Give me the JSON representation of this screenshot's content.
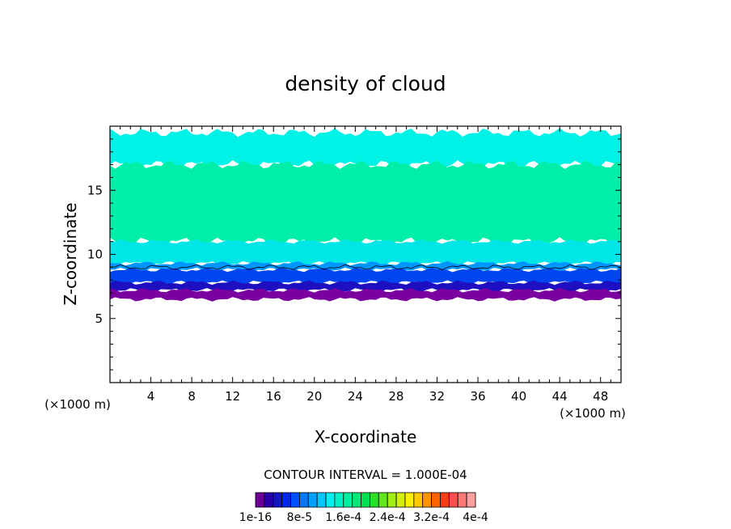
{
  "chart_data": {
    "type": "heatmap",
    "title": "density of cloud",
    "xlabel": "X-coordinate",
    "ylabel": "Z-coordinate",
    "x_unit": "(×1000 m)",
    "xlim": [
      0,
      50
    ],
    "ylim": [
      0,
      20
    ],
    "x_ticks": [
      4,
      8,
      12,
      16,
      20,
      24,
      28,
      32,
      36,
      40,
      44,
      48
    ],
    "y_ticks": [
      5,
      10,
      15
    ],
    "contour_interval_text": "CONTOUR INTERVAL = 1.000E-04",
    "colorbar": {
      "labels": [
        "1e-16",
        "8e-5",
        "1.6e-4",
        "2.4e-4",
        "3.2e-4",
        "4e-4"
      ],
      "colors": [
        "#6b0096",
        "#2a00a8",
        "#1414c8",
        "#0028e6",
        "#0050ff",
        "#0078ff",
        "#00a0ff",
        "#00c8ff",
        "#00f0f0",
        "#00f0c8",
        "#00f0a0",
        "#00e878",
        "#00e050",
        "#28e028",
        "#64e61e",
        "#a0ee14",
        "#d2f00a",
        "#fff000",
        "#ffc800",
        "#ff9600",
        "#ff6400",
        "#ff3c14",
        "#ff5050",
        "#ff7878",
        "#ffa0a0"
      ]
    },
    "layers": [
      {
        "name": "top-cyan",
        "z_bottom": 17,
        "z_top": 19.5,
        "color": "#00f2e6"
      },
      {
        "name": "core-green",
        "z_bottom": 11,
        "z_top": 17,
        "color": "#00eea8"
      },
      {
        "name": "lower-cyan",
        "z_bottom": 9.3,
        "z_top": 11,
        "color": "#00e6e6"
      },
      {
        "name": "sky-blue",
        "z_bottom": 8.8,
        "z_top": 9.3,
        "color": "#0096ff"
      },
      {
        "name": "blue",
        "z_bottom": 7.8,
        "z_top": 8.8,
        "color": "#0046f0"
      },
      {
        "name": "dark-blue",
        "z_bottom": 7.2,
        "z_top": 7.8,
        "color": "#1e10c0"
      },
      {
        "name": "purple-base",
        "z_bottom": 6.5,
        "z_top": 7.2,
        "color": "#7a00a0"
      }
    ]
  }
}
